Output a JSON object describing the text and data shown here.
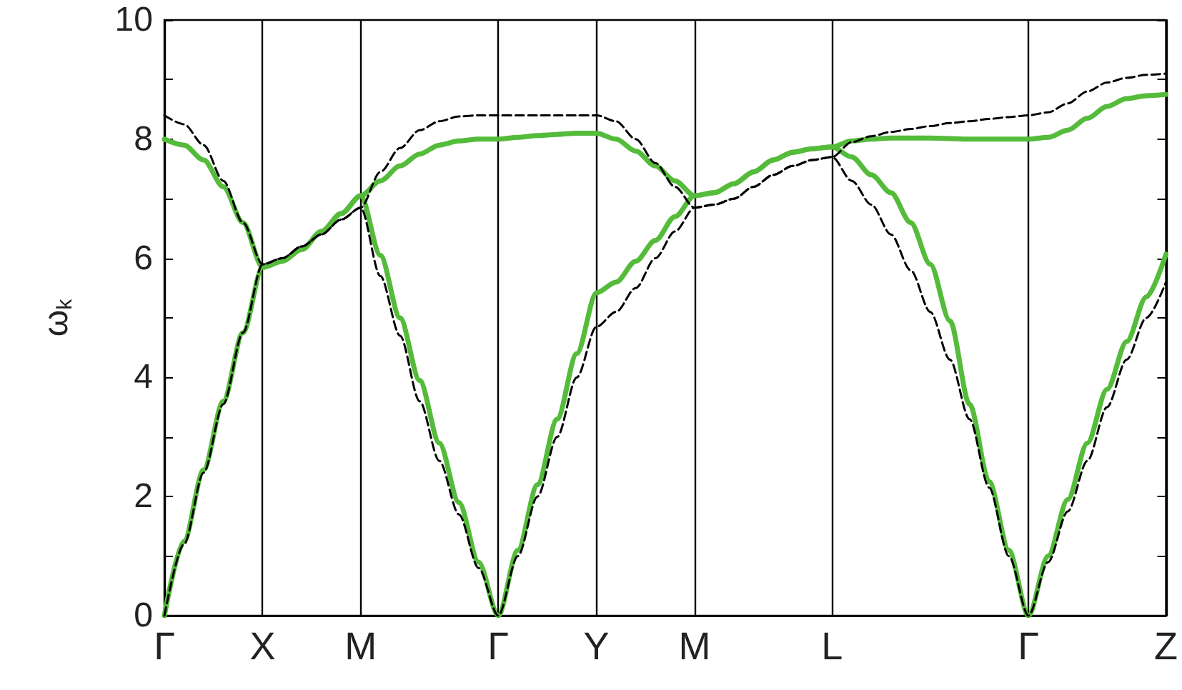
{
  "chart_data": {
    "type": "line",
    "ylabel": "ω$_{k}$",
    "categories": [
      "Γ",
      null,
      null,
      null,
      null,
      "X",
      null,
      null,
      null,
      null,
      "M",
      null,
      null,
      null,
      null,
      null,
      null,
      "Γ",
      null,
      null,
      null,
      null,
      "Y",
      null,
      null,
      null,
      null,
      "M",
      null,
      null,
      null,
      null,
      null,
      null,
      "L",
      null,
      null,
      null,
      null,
      null,
      null,
      null,
      null,
      null,
      "Γ",
      null,
      null,
      null,
      null,
      null,
      null,
      "Z"
    ],
    "ylim": [
      0,
      10
    ],
    "yticks": [
      0,
      {
        "value": 1,
        "label": null
      },
      2,
      {
        "value": 3,
        "label": null
      },
      4,
      {
        "value": 5,
        "label": null
      },
      6,
      {
        "value": 7,
        "label": null
      },
      8,
      {
        "value": 9,
        "label": null
      },
      10
    ],
    "grid": "x",
    "series": [
      {
        "color": "#000000",
        "line_style": "dashed",
        "values": [
          0,
          1.2,
          2.4,
          3.55,
          4.75,
          5.9,
          6.0,
          6.2,
          6.4,
          6.65,
          6.85,
          5.7,
          4.7,
          3.6,
          2.6,
          1.7,
          0.8,
          0,
          1.0,
          2.0,
          3.0,
          4.0,
          4.85,
          5.1,
          5.5,
          6.0,
          6.45,
          6.85,
          6.9,
          7.0,
          7.2,
          7.4,
          7.55,
          7.65,
          7.7,
          7.3,
          6.9,
          6.4,
          5.8,
          5.1,
          4.3,
          3.3,
          2.15,
          1.0,
          0,
          0.9,
          1.75,
          2.6,
          3.5,
          4.3,
          5.0,
          5.6
        ]
      },
      {
        "color": "#000000",
        "line_style": "dashed",
        "values": [
          8.4,
          8.25,
          7.9,
          7.3,
          6.6,
          5.9,
          6.0,
          6.2,
          6.4,
          6.65,
          6.85,
          7.45,
          7.85,
          8.15,
          8.3,
          8.38,
          8.4,
          8.4,
          8.4,
          8.4,
          8.4,
          8.4,
          8.4,
          8.3,
          8.0,
          7.6,
          7.2,
          6.85,
          6.9,
          7.0,
          7.2,
          7.4,
          7.55,
          7.65,
          7.7,
          7.95,
          8.05,
          8.12,
          8.17,
          8.22,
          8.27,
          8.3,
          8.34,
          8.37,
          8.4,
          8.45,
          8.6,
          8.8,
          8.95,
          9.03,
          9.08,
          9.1
        ]
      },
      {
        "color": "#55bb3b",
        "line_style": "solid",
        "values": [
          0,
          1.25,
          2.45,
          3.6,
          4.75,
          5.85,
          5.95,
          6.15,
          6.45,
          6.75,
          7.05,
          6.05,
          5.0,
          3.95,
          2.9,
          1.9,
          0.9,
          0,
          1.1,
          2.2,
          3.3,
          4.4,
          5.42,
          5.6,
          5.95,
          6.3,
          6.7,
          7.05,
          7.1,
          7.25,
          7.45,
          7.65,
          7.78,
          7.84,
          7.87,
          7.7,
          7.4,
          7.1,
          6.6,
          5.9,
          4.95,
          3.55,
          2.25,
          1.1,
          0,
          1.0,
          1.95,
          2.9,
          3.8,
          4.6,
          5.35,
          6.07
        ]
      },
      {
        "color": "#55bb3b",
        "line_style": "solid",
        "values": [
          8.0,
          7.9,
          7.65,
          7.2,
          6.6,
          5.85,
          5.95,
          6.15,
          6.45,
          6.75,
          7.05,
          7.3,
          7.55,
          7.75,
          7.9,
          7.97,
          8.0,
          8.0,
          8.03,
          8.06,
          8.08,
          8.1,
          8.1,
          8.0,
          7.8,
          7.55,
          7.3,
          7.05,
          7.1,
          7.25,
          7.45,
          7.65,
          7.78,
          7.84,
          7.87,
          7.97,
          8.0,
          8.02,
          8.02,
          8.02,
          8.01,
          8.0,
          8.0,
          8.0,
          8.0,
          8.03,
          8.15,
          8.35,
          8.55,
          8.68,
          8.73,
          8.75
        ]
      }
    ]
  }
}
